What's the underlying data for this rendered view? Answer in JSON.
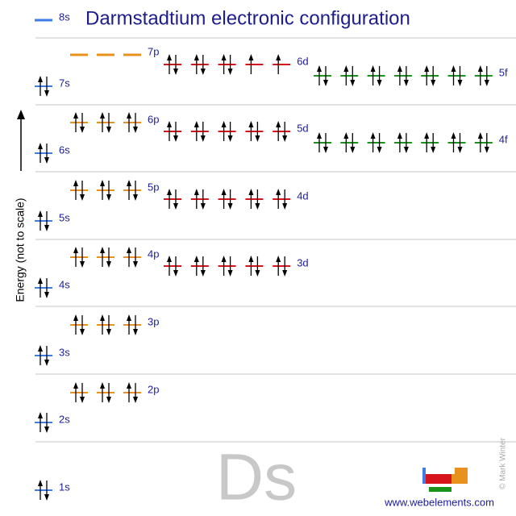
{
  "title": "Darmstadtium electronic configuration",
  "axis_label": "Energy (not to scale)",
  "symbol": "Ds",
  "copyright": "© Mark Winter",
  "website": "www.webelements.com",
  "orbitals": [
    {
      "label": "1s",
      "electrons": 2,
      "color": "#3d7ee6"
    },
    {
      "label": "2s",
      "electrons": 2,
      "color": "#3d7ee6"
    },
    {
      "label": "2p",
      "electrons": 6,
      "color": "#e8911c"
    },
    {
      "label": "3s",
      "electrons": 2,
      "color": "#3d7ee6"
    },
    {
      "label": "3p",
      "electrons": 6,
      "color": "#e8911c"
    },
    {
      "label": "3d",
      "electrons": 10,
      "color": "#d6141c"
    },
    {
      "label": "4s",
      "electrons": 2,
      "color": "#3d7ee6"
    },
    {
      "label": "4p",
      "electrons": 6,
      "color": "#e8911c"
    },
    {
      "label": "4d",
      "electrons": 10,
      "color": "#d6141c"
    },
    {
      "label": "4f",
      "electrons": 14,
      "color": "#1a931a"
    },
    {
      "label": "5s",
      "electrons": 2,
      "color": "#3d7ee6"
    },
    {
      "label": "5p",
      "electrons": 6,
      "color": "#e8911c"
    },
    {
      "label": "5d",
      "electrons": 10,
      "color": "#d6141c"
    },
    {
      "label": "5f",
      "electrons": 14,
      "color": "#1a931a"
    },
    {
      "label": "6s",
      "electrons": 2,
      "color": "#3d7ee6"
    },
    {
      "label": "6p",
      "electrons": 6,
      "color": "#e8911c"
    },
    {
      "label": "6d",
      "electrons": 8,
      "color": "#d6141c"
    },
    {
      "label": "7s",
      "electrons": 2,
      "color": "#3d7ee6"
    },
    {
      "label": "7p",
      "electrons": 0,
      "color": "#e8911c"
    },
    {
      "label": "8s",
      "electrons": 0,
      "color": "#3d7ee6"
    }
  ]
}
